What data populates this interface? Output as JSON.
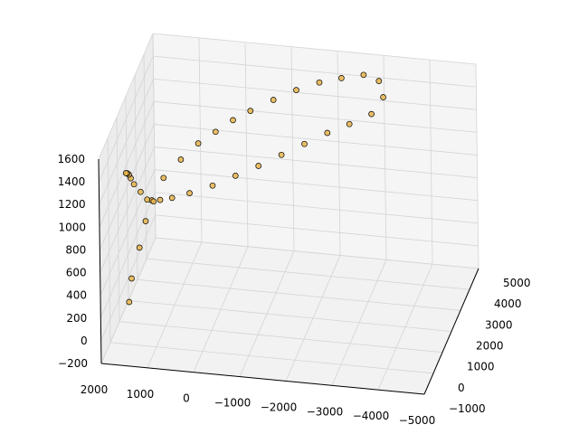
{
  "chart_data": {
    "type": "scatter",
    "title": "",
    "projection": "3d",
    "grid": true,
    "xlim": [
      -5000,
      2000
    ],
    "ylim": [
      -1000,
      5000
    ],
    "zlim": [
      -200,
      1600
    ],
    "x_ticks": [
      "2000",
      "1000",
      "0",
      "−1000",
      "−2000",
      "−3000",
      "−4000",
      "−5000"
    ],
    "y_ticks": [
      "−1000",
      "0",
      "1000",
      "2000",
      "3000",
      "4000",
      "5000"
    ],
    "z_ticks": [
      "−200",
      "0",
      "200",
      "400",
      "600",
      "800",
      "1000",
      "1200",
      "1400",
      "1600"
    ],
    "marker_face_color": "#e6b44c",
    "marker_edge_color": "#000000",
    "series": [
      {
        "points": [
          [
            1500,
            -400,
            250
          ],
          [
            1450,
            -350,
            450
          ],
          [
            1300,
            -200,
            700
          ],
          [
            1200,
            0,
            900
          ],
          [
            1100,
            200,
            1050
          ],
          [
            900,
            500,
            1200
          ],
          [
            600,
            900,
            1300
          ],
          [
            300,
            1300,
            1380
          ],
          [
            0,
            1700,
            1420
          ],
          [
            -300,
            2100,
            1460
          ],
          [
            -600,
            2500,
            1480
          ],
          [
            -1000,
            3000,
            1500
          ],
          [
            -1400,
            3500,
            1510
          ],
          [
            -1800,
            4000,
            1500
          ],
          [
            -2200,
            4400,
            1480
          ],
          [
            -2600,
            4800,
            1450
          ],
          [
            -2900,
            4950,
            1380
          ],
          [
            -3000,
            4900,
            1250
          ],
          [
            -2800,
            4600,
            1150
          ],
          [
            -2400,
            4200,
            1120
          ],
          [
            -2000,
            3800,
            1100
          ],
          [
            -1600,
            3300,
            1080
          ],
          [
            -1200,
            2800,
            1060
          ],
          [
            -800,
            2300,
            1040
          ],
          [
            -400,
            1800,
            1030
          ],
          [
            0,
            1300,
            1020
          ],
          [
            400,
            800,
            1030
          ],
          [
            700,
            400,
            1050
          ],
          [
            900,
            100,
            1080
          ],
          [
            1000,
            -100,
            1100
          ],
          [
            1100,
            -300,
            1150
          ],
          [
            1200,
            -500,
            1250
          ],
          [
            1300,
            -700,
            1350
          ],
          [
            1350,
            -800,
            1420
          ],
          [
            1380,
            -850,
            1460
          ],
          [
            1400,
            -900,
            1480
          ],
          [
            1420,
            -950,
            1490
          ]
        ]
      }
    ]
  }
}
